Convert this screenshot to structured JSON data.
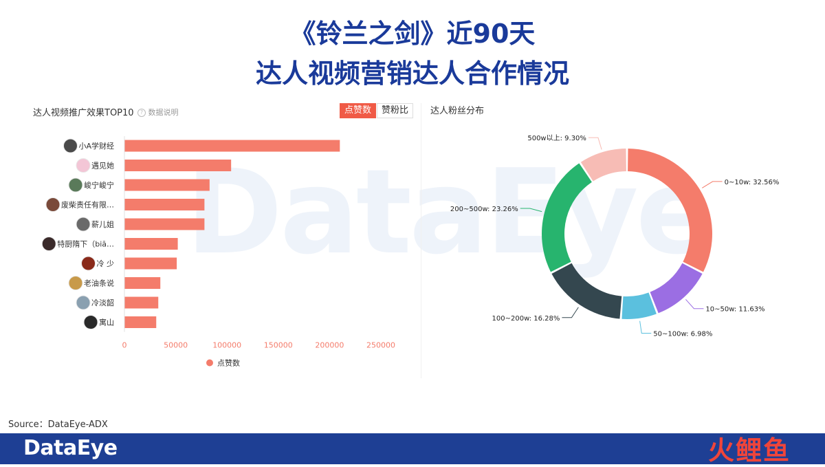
{
  "title": {
    "line1": "《铃兰之剑》近90天",
    "line2": "达人视频营销达人合作情况"
  },
  "left_panel": {
    "title": "达人视频推广效果TOP10",
    "hint": "数据说明",
    "tabs": [
      "点赞数",
      "赞粉比"
    ],
    "active_tab": "点赞数"
  },
  "right_panel": {
    "title": "达人粉丝分布"
  },
  "watermark": "DataEye",
  "source": "Source：DataEye-ADX",
  "footer": {
    "logo": "DataEye",
    "brand": "火鲤鱼"
  },
  "colors": {
    "bar": "#f47c6b",
    "tab_active": "#f05a46",
    "title": "#1a3a9a",
    "footer": "#1e3f94"
  },
  "chart_data": [
    {
      "type": "bar",
      "orientation": "horizontal",
      "title": "达人视频推广效果TOP10",
      "categories": [
        "小A学财经",
        "遇见她",
        "峻宁峻宁",
        "废柴责任有限…",
        "薪儿姐",
        "特厨隋下（biā…",
        "冷 少",
        "老油条说",
        "冷淡韶",
        "寓山"
      ],
      "series": [
        {
          "name": "点赞数",
          "values": [
            210000,
            104000,
            83000,
            78000,
            78000,
            52000,
            51000,
            35000,
            33000,
            31000
          ]
        }
      ],
      "xlim": [
        0,
        250000
      ],
      "xticks": [
        0,
        50000,
        100000,
        150000,
        200000,
        250000
      ],
      "legend": "bottom",
      "grid": false
    },
    {
      "type": "pie",
      "donut": true,
      "title": "达人粉丝分布",
      "slices": [
        {
          "label": "0~10w",
          "value": 32.56,
          "text": "0~10w: 32.56%",
          "color": "#f47c6b"
        },
        {
          "label": "10~50w",
          "value": 11.63,
          "text": "10~50w: 11.63%",
          "color": "#9b6ee3"
        },
        {
          "label": "50~100w",
          "value": 6.98,
          "text": "50~100w: 6.98%",
          "color": "#5bc0de"
        },
        {
          "label": "100~200w",
          "value": 16.28,
          "text": "100~200w: 16.28%",
          "color": "#34474f"
        },
        {
          "label": "200~500w",
          "value": 23.26,
          "text": "200~500w: 23.26%",
          "color": "#27b46e"
        },
        {
          "label": "500w以上",
          "value": 9.3,
          "text": "500w以上: 9.30%",
          "color": "#f7bcb5"
        }
      ]
    }
  ]
}
